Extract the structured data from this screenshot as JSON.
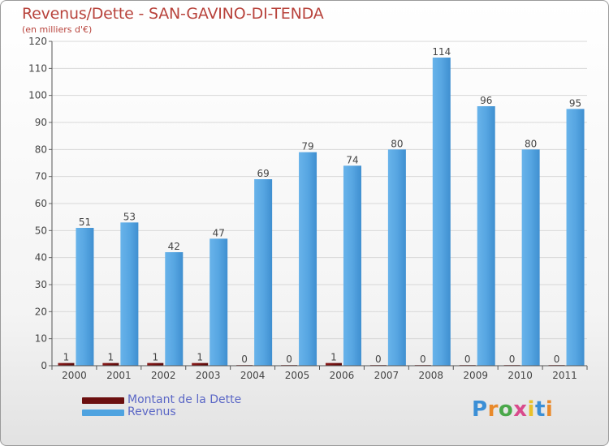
{
  "title": "Revenus/Dette - SAN-GAVINO-DI-TENDA",
  "subtitle": "(en milliers d'€)",
  "colors": {
    "title": "#b8433c",
    "dette": "#6b0f0f",
    "revenus": "#4fa3e0",
    "legend_text": "#5b67c6"
  },
  "chart_data": {
    "type": "bar",
    "title": "Revenus/Dette - SAN-GAVINO-DI-TENDA",
    "subtitle": "(en milliers d'€)",
    "categories": [
      "2000",
      "2001",
      "2002",
      "2003",
      "2004",
      "2005",
      "2006",
      "2007",
      "2008",
      "2009",
      "2010",
      "2011"
    ],
    "series": [
      {
        "name": "Montant de la Dette",
        "values": [
          1,
          1,
          1,
          1,
          0,
          0,
          1,
          0,
          0,
          0,
          0,
          0
        ]
      },
      {
        "name": "Revenus",
        "values": [
          51,
          53,
          42,
          47,
          69,
          79,
          74,
          80,
          114,
          96,
          80,
          95
        ]
      }
    ],
    "ylim": [
      0,
      120
    ],
    "yticks": [
      0,
      10,
      20,
      30,
      40,
      50,
      60,
      70,
      80,
      90,
      100,
      110,
      120
    ],
    "grid": true,
    "legend_position": "bottom-left"
  },
  "legend": {
    "items": [
      {
        "label": "Montant de la Dette",
        "color": "#6b0f0f"
      },
      {
        "label": "Revenus",
        "color": "#4fa3e0"
      }
    ]
  },
  "logo": {
    "letters": [
      "P",
      "r",
      "o",
      "x",
      "i",
      "t",
      "i"
    ],
    "colors": [
      "#3b8fd6",
      "#e98a2b",
      "#4aa84a",
      "#d94a8c",
      "#e9c12b",
      "#3b8fd6",
      "#e98a2b"
    ]
  }
}
